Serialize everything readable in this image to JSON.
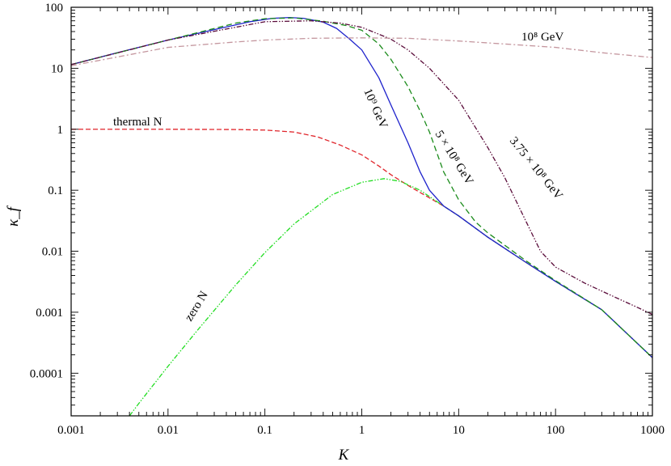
{
  "chart_data": {
    "type": "line",
    "title": "",
    "xlabel": "K",
    "ylabel": "κ_f",
    "xscale": "log",
    "yscale": "log",
    "xlim": [
      0.001,
      1000
    ],
    "ylim": [
      2e-05,
      100
    ],
    "grid": false,
    "legend": "none",
    "x_ticks": [
      {
        "value": 0.001,
        "label": "0.001"
      },
      {
        "value": 0.01,
        "label": "0.01"
      },
      {
        "value": 0.1,
        "label": "0.1"
      },
      {
        "value": 1,
        "label": "1"
      },
      {
        "value": 10,
        "label": "10"
      },
      {
        "value": 100,
        "label": "100"
      },
      {
        "value": 1000,
        "label": "1000"
      }
    ],
    "y_ticks": [
      {
        "value": 0.0001,
        "label": "0.0001"
      },
      {
        "value": 0.001,
        "label": "0.001"
      },
      {
        "value": 0.01,
        "label": "0.01"
      },
      {
        "value": 0.1,
        "label": "0.1"
      },
      {
        "value": 1,
        "label": "1"
      },
      {
        "value": 10,
        "label": "10"
      },
      {
        "value": 100,
        "label": "100"
      }
    ],
    "series": [
      {
        "key": "thermal",
        "color": "#e0252b",
        "dash": "6,3",
        "points": [
          [
            0.001,
            1.0
          ],
          [
            0.01,
            1.0
          ],
          [
            0.05,
            0.99
          ],
          [
            0.1,
            0.97
          ],
          [
            0.2,
            0.9
          ],
          [
            0.35,
            0.75
          ],
          [
            0.6,
            0.55
          ],
          [
            1,
            0.38
          ],
          [
            1.5,
            0.25
          ],
          [
            2,
            0.18
          ],
          [
            3,
            0.12
          ],
          [
            5,
            0.075
          ],
          [
            7,
            0.055
          ],
          [
            10,
            0.038
          ],
          [
            20,
            0.017
          ],
          [
            50,
            0.0065
          ],
          [
            100,
            0.0032
          ],
          [
            300,
            0.0011
          ],
          [
            1000,
            0.00018
          ]
        ]
      },
      {
        "key": "zero",
        "color": "#22dd22",
        "dash": "6,2,1.5,2,1.5,2",
        "points": [
          [
            0.004,
            2e-05
          ],
          [
            0.005,
            3.2e-05
          ],
          [
            0.01,
            0.00013
          ],
          [
            0.02,
            0.0005
          ],
          [
            0.05,
            0.0028
          ],
          [
            0.1,
            0.0095
          ],
          [
            0.2,
            0.028
          ],
          [
            0.5,
            0.085
          ],
          [
            1,
            0.135
          ],
          [
            1.7,
            0.155
          ],
          [
            2.5,
            0.14
          ],
          [
            4,
            0.1
          ],
          [
            7,
            0.055
          ],
          [
            10,
            0.038
          ],
          [
            20,
            0.017
          ],
          [
            50,
            0.0065
          ],
          [
            100,
            0.0032
          ],
          [
            300,
            0.0011
          ],
          [
            1000,
            0.00018
          ]
        ]
      },
      {
        "key": "m1e9",
        "color": "#1e22cc",
        "dash": "",
        "points": [
          [
            0.001,
            11.5
          ],
          [
            0.003,
            18
          ],
          [
            0.01,
            29
          ],
          [
            0.03,
            43
          ],
          [
            0.07,
            58
          ],
          [
            0.12,
            66
          ],
          [
            0.18,
            68
          ],
          [
            0.25,
            66
          ],
          [
            0.4,
            57
          ],
          [
            0.55,
            45
          ],
          [
            0.75,
            30
          ],
          [
            1,
            20
          ],
          [
            1.5,
            7
          ],
          [
            2,
            2.5
          ],
          [
            3,
            0.6
          ],
          [
            4,
            0.2
          ],
          [
            5,
            0.1
          ],
          [
            7,
            0.055
          ],
          [
            10,
            0.038
          ],
          [
            20,
            0.017
          ],
          [
            50,
            0.0065
          ],
          [
            100,
            0.0032
          ],
          [
            300,
            0.0011
          ],
          [
            1000,
            0.00018
          ]
        ]
      },
      {
        "key": "m5e8",
        "color": "#1c8c1c",
        "dash": "7,4",
        "points": [
          [
            0.001,
            11.5
          ],
          [
            0.01,
            29
          ],
          [
            0.05,
            55
          ],
          [
            0.1,
            65
          ],
          [
            0.2,
            67
          ],
          [
            0.4,
            59
          ],
          [
            0.7,
            50
          ],
          [
            1,
            42
          ],
          [
            1.5,
            25
          ],
          [
            2,
            14
          ],
          [
            3,
            5
          ],
          [
            4,
            2
          ],
          [
            5,
            0.9
          ],
          [
            7,
            0.2
          ],
          [
            10,
            0.07
          ],
          [
            15,
            0.03
          ],
          [
            20,
            0.02
          ],
          [
            50,
            0.0069
          ],
          [
            100,
            0.0033
          ],
          [
            300,
            0.0011
          ],
          [
            1000,
            0.00018
          ]
        ]
      },
      {
        "key": "m375e8",
        "color": "#5a0c3a",
        "dash": "6,2,1.5,2,1.5,2",
        "points": [
          [
            0.001,
            11.5
          ],
          [
            0.01,
            29
          ],
          [
            0.1,
            58
          ],
          [
            0.3,
            60
          ],
          [
            0.6,
            55
          ],
          [
            1,
            47
          ],
          [
            2,
            30
          ],
          [
            3,
            20
          ],
          [
            5,
            10
          ],
          [
            10,
            3
          ],
          [
            20,
            0.5
          ],
          [
            30,
            0.16
          ],
          [
            50,
            0.03
          ],
          [
            70,
            0.01
          ],
          [
            100,
            0.0055
          ],
          [
            200,
            0.003
          ],
          [
            400,
            0.0018
          ],
          [
            700,
            0.0012
          ],
          [
            1000,
            0.00092
          ]
        ]
      },
      {
        "key": "m1e8",
        "color": "#c4969e",
        "dash": "7,3,2,3",
        "points": [
          [
            0.001,
            11
          ],
          [
            0.01,
            22
          ],
          [
            0.05,
            27
          ],
          [
            0.1,
            29
          ],
          [
            0.3,
            31
          ],
          [
            1,
            31.5
          ],
          [
            3,
            31
          ],
          [
            10,
            28
          ],
          [
            30,
            25
          ],
          [
            100,
            22
          ],
          [
            300,
            18
          ],
          [
            1000,
            15
          ]
        ]
      }
    ],
    "annotations": {
      "thermal": "thermal N",
      "zero": "zero N",
      "m1e9": "10⁹ GeV",
      "m5e8": "5 × 10⁸ GeV",
      "m375e8": "3.75 × 10⁸ GeV",
      "m1e8": "10⁸ GeV"
    }
  }
}
